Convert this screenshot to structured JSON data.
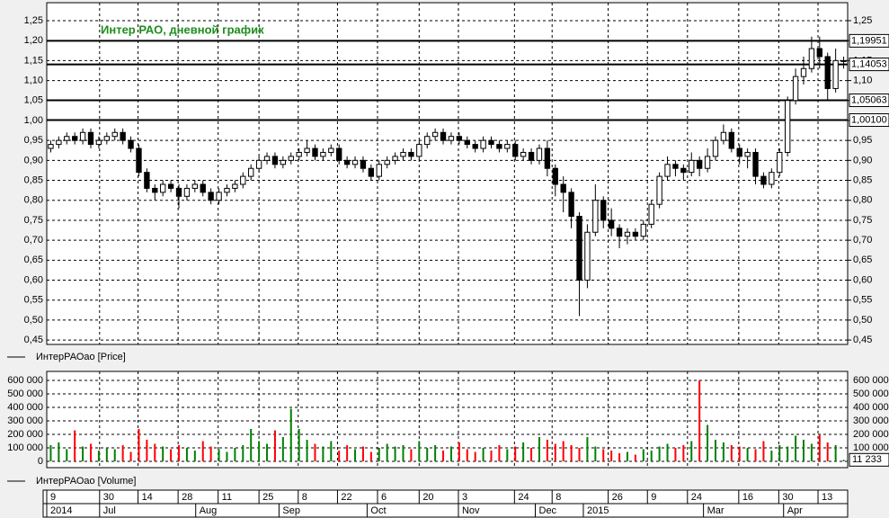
{
  "chart_data": {
    "type": "candlestick",
    "title": "Интер РАО, дневной график",
    "price_legend": "ИнтерРАОао [Price]",
    "volume_legend": "ИнтерРАОао [Volume]",
    "up_color": "#008000",
    "down_color": "#ff0000",
    "grid": true,
    "xlim": [
      0,
      100
    ],
    "ylim": [
      0.439,
      1.295
    ],
    "yticks": [
      {
        "value": 0.45,
        "label": "0,45"
      },
      {
        "value": 0.5,
        "label": "0,50"
      },
      {
        "value": 0.55,
        "label": "0,55"
      },
      {
        "value": 0.6,
        "label": "0,60"
      },
      {
        "value": 0.65,
        "label": "0,65"
      },
      {
        "value": 0.7,
        "label": "0,70"
      },
      {
        "value": 0.75,
        "label": "0,75"
      },
      {
        "value": 0.8,
        "label": "0,80"
      },
      {
        "value": 0.85,
        "label": "0,85"
      },
      {
        "value": 0.9,
        "label": "0,90"
      },
      {
        "value": 0.95,
        "label": "0,95"
      },
      {
        "value": 1.0,
        "label": "1,00"
      },
      {
        "value": 1.05,
        "label": "1,05"
      },
      {
        "value": 1.1,
        "label": "1,10"
      },
      {
        "value": 1.15,
        "label": "1,15"
      },
      {
        "value": 1.2,
        "label": "1,20"
      },
      {
        "value": 1.25,
        "label": "1,25"
      }
    ],
    "levels": [
      {
        "value": 1.19951,
        "label": "1,19951"
      },
      {
        "value": 1.14053,
        "label": "1,14053"
      },
      {
        "value": 1.05063,
        "label": "1,05063"
      },
      {
        "value": 1.001,
        "label": "1,00100"
      }
    ],
    "xticks": [
      {
        "value": 0,
        "label": "9"
      },
      {
        "value": 6.6,
        "label": "30"
      },
      {
        "value": 11.4,
        "label": "14"
      },
      {
        "value": 16.4,
        "label": "28"
      },
      {
        "value": 21.4,
        "label": "11"
      },
      {
        "value": 26.5,
        "label": "25"
      },
      {
        "value": 31.4,
        "label": "8"
      },
      {
        "value": 36.3,
        "label": "22"
      },
      {
        "value": 41.3,
        "label": "6"
      },
      {
        "value": 46.5,
        "label": "20"
      },
      {
        "value": 51.4,
        "label": "3"
      },
      {
        "value": 58.4,
        "label": "24"
      },
      {
        "value": 63.1,
        "label": "8"
      },
      {
        "value": 70.1,
        "label": "26"
      },
      {
        "value": 75,
        "label": "9"
      },
      {
        "value": 80,
        "label": "24"
      },
      {
        "value": 86.4,
        "label": "16"
      },
      {
        "value": 91.4,
        "label": "30"
      },
      {
        "value": 96.3,
        "label": "13"
      }
    ],
    "month_ticks": [
      {
        "value": 0,
        "label": "2014"
      },
      {
        "value": 6.6,
        "label": "Jul"
      },
      {
        "value": 18.6,
        "label": "Aug"
      },
      {
        "value": 29,
        "label": "Sep"
      },
      {
        "value": 40,
        "label": "Oct"
      },
      {
        "value": 51.4,
        "label": "Nov"
      },
      {
        "value": 61,
        "label": "Dec"
      },
      {
        "value": 67,
        "label": "2015"
      },
      {
        "value": 82,
        "label": "Mar"
      },
      {
        "value": 92,
        "label": "Apr"
      }
    ],
    "open": [
      0.93,
      0.94,
      0.95,
      0.96,
      0.95,
      0.97,
      0.94,
      0.95,
      0.96,
      0.97,
      0.95,
      0.93,
      0.87,
      0.83,
      0.82,
      0.84,
      0.83,
      0.81,
      0.83,
      0.84,
      0.82,
      0.8,
      0.82,
      0.83,
      0.84,
      0.86,
      0.88,
      0.9,
      0.91,
      0.89,
      0.9,
      0.91,
      0.92,
      0.93,
      0.91,
      0.92,
      0.93,
      0.9,
      0.89,
      0.9,
      0.88,
      0.86,
      0.89,
      0.9,
      0.91,
      0.92,
      0.91,
      0.94,
      0.96,
      0.97,
      0.95,
      0.96,
      0.95,
      0.94,
      0.93,
      0.95,
      0.94,
      0.93,
      0.94,
      0.91,
      0.92,
      0.9,
      0.93,
      0.88,
      0.84,
      0.82,
      0.76,
      0.6,
      0.72,
      0.8,
      0.75,
      0.73,
      0.71,
      0.72,
      0.71,
      0.74,
      0.79,
      0.86,
      0.89,
      0.88,
      0.87,
      0.9,
      0.88,
      0.91,
      0.95,
      0.97,
      0.93,
      0.91,
      0.92,
      0.86,
      0.84,
      0.87,
      0.92,
      1.05,
      1.11,
      1.13,
      1.18,
      1.16,
      1.08,
      1.15
    ],
    "high": [
      0.95,
      0.96,
      0.97,
      0.97,
      0.98,
      0.98,
      0.96,
      0.97,
      0.98,
      0.98,
      0.96,
      0.94,
      0.88,
      0.84,
      0.85,
      0.85,
      0.84,
      0.84,
      0.85,
      0.85,
      0.83,
      0.83,
      0.84,
      0.85,
      0.87,
      0.89,
      0.91,
      0.92,
      0.92,
      0.91,
      0.92,
      0.93,
      0.95,
      0.94,
      0.93,
      0.94,
      0.94,
      0.91,
      0.91,
      0.91,
      0.89,
      0.9,
      0.91,
      0.92,
      0.93,
      0.93,
      0.95,
      0.97,
      0.98,
      0.98,
      0.97,
      0.97,
      0.96,
      0.95,
      0.96,
      0.96,
      0.95,
      0.95,
      0.95,
      0.93,
      0.93,
      0.94,
      0.95,
      0.89,
      0.86,
      0.83,
      0.77,
      0.74,
      0.84,
      0.81,
      0.78,
      0.74,
      0.73,
      0.73,
      0.75,
      0.8,
      0.87,
      0.91,
      0.9,
      0.89,
      0.92,
      0.91,
      0.93,
      0.96,
      0.99,
      0.98,
      0.94,
      0.93,
      0.93,
      0.87,
      0.88,
      0.93,
      1.06,
      1.13,
      1.16,
      1.21,
      1.21,
      1.17,
      1.18,
      1.16
    ],
    "low": [
      0.92,
      0.93,
      0.94,
      0.94,
      0.94,
      0.93,
      0.93,
      0.94,
      0.95,
      0.94,
      0.92,
      0.86,
      0.82,
      0.8,
      0.81,
      0.82,
      0.78,
      0.8,
      0.82,
      0.81,
      0.79,
      0.79,
      0.81,
      0.82,
      0.83,
      0.85,
      0.87,
      0.89,
      0.88,
      0.88,
      0.89,
      0.9,
      0.91,
      0.9,
      0.9,
      0.91,
      0.89,
      0.88,
      0.88,
      0.87,
      0.85,
      0.85,
      0.88,
      0.89,
      0.9,
      0.9,
      0.9,
      0.93,
      0.95,
      0.94,
      0.94,
      0.94,
      0.93,
      0.92,
      0.92,
      0.93,
      0.92,
      0.92,
      0.9,
      0.9,
      0.89,
      0.89,
      0.86,
      0.81,
      0.77,
      0.73,
      0.51,
      0.58,
      0.71,
      0.73,
      0.71,
      0.68,
      0.69,
      0.7,
      0.7,
      0.73,
      0.78,
      0.85,
      0.86,
      0.85,
      0.86,
      0.86,
      0.87,
      0.9,
      0.94,
      0.92,
      0.89,
      0.88,
      0.84,
      0.83,
      0.83,
      0.86,
      0.91,
      1.04,
      1.09,
      1.12,
      1.13,
      1.05,
      1.07,
      1.13
    ],
    "close": [
      0.94,
      0.95,
      0.96,
      0.95,
      0.97,
      0.94,
      0.95,
      0.96,
      0.97,
      0.95,
      0.93,
      0.87,
      0.83,
      0.82,
      0.84,
      0.83,
      0.81,
      0.83,
      0.84,
      0.82,
      0.8,
      0.82,
      0.83,
      0.84,
      0.86,
      0.88,
      0.9,
      0.91,
      0.89,
      0.9,
      0.91,
      0.92,
      0.93,
      0.91,
      0.92,
      0.93,
      0.9,
      0.89,
      0.9,
      0.88,
      0.86,
      0.89,
      0.9,
      0.91,
      0.92,
      0.91,
      0.94,
      0.96,
      0.97,
      0.95,
      0.96,
      0.95,
      0.94,
      0.93,
      0.95,
      0.94,
      0.93,
      0.94,
      0.91,
      0.92,
      0.9,
      0.93,
      0.88,
      0.84,
      0.82,
      0.76,
      0.6,
      0.72,
      0.8,
      0.75,
      0.73,
      0.71,
      0.72,
      0.71,
      0.74,
      0.79,
      0.86,
      0.89,
      0.88,
      0.87,
      0.9,
      0.88,
      0.91,
      0.95,
      0.97,
      0.93,
      0.91,
      0.92,
      0.86,
      0.84,
      0.87,
      0.92,
      1.05,
      1.11,
      1.13,
      1.18,
      1.16,
      1.08,
      1.15,
      1.15
    ],
    "volume": {
      "values": [
        120000,
        140000,
        90000,
        230000,
        110000,
        130000,
        80000,
        100000,
        90000,
        120000,
        70000,
        240000,
        160000,
        130000,
        110000,
        90000,
        120000,
        100000,
        80000,
        150000,
        110000,
        90000,
        70000,
        100000,
        120000,
        240000,
        150000,
        130000,
        230000,
        180000,
        390000,
        240000,
        160000,
        130000,
        110000,
        150000,
        80000,
        120000,
        90000,
        110000,
        70000,
        100000,
        130000,
        110000,
        120000,
        90000,
        150000,
        100000,
        120000,
        80000,
        110000,
        140000,
        90000,
        70000,
        100000,
        80000,
        120000,
        90000,
        110000,
        140000,
        100000,
        180000,
        160000,
        130000,
        150000,
        120000,
        100000,
        180000,
        110000,
        90000,
        80000,
        60000,
        70000,
        50000,
        90000,
        80000,
        110000,
        130000,
        100000,
        120000,
        150000,
        600000,
        270000,
        160000,
        140000,
        120000,
        110000,
        100000,
        90000,
        150000,
        80000,
        120000,
        110000,
        190000,
        160000,
        130000,
        200000,
        140000,
        120000,
        11233
      ],
      "last_label": "11 233",
      "ylim": [
        -46667,
        666667
      ],
      "yticks": [
        {
          "value": 0,
          "label": "0"
        },
        {
          "value": 100000,
          "label": "100 000"
        },
        {
          "value": 200000,
          "label": "200 000"
        },
        {
          "value": 300000,
          "label": "300 000"
        },
        {
          "value": 400000,
          "label": "400 000"
        },
        {
          "value": 500000,
          "label": "500 000"
        },
        {
          "value": 600000,
          "label": "600 000"
        }
      ]
    }
  }
}
